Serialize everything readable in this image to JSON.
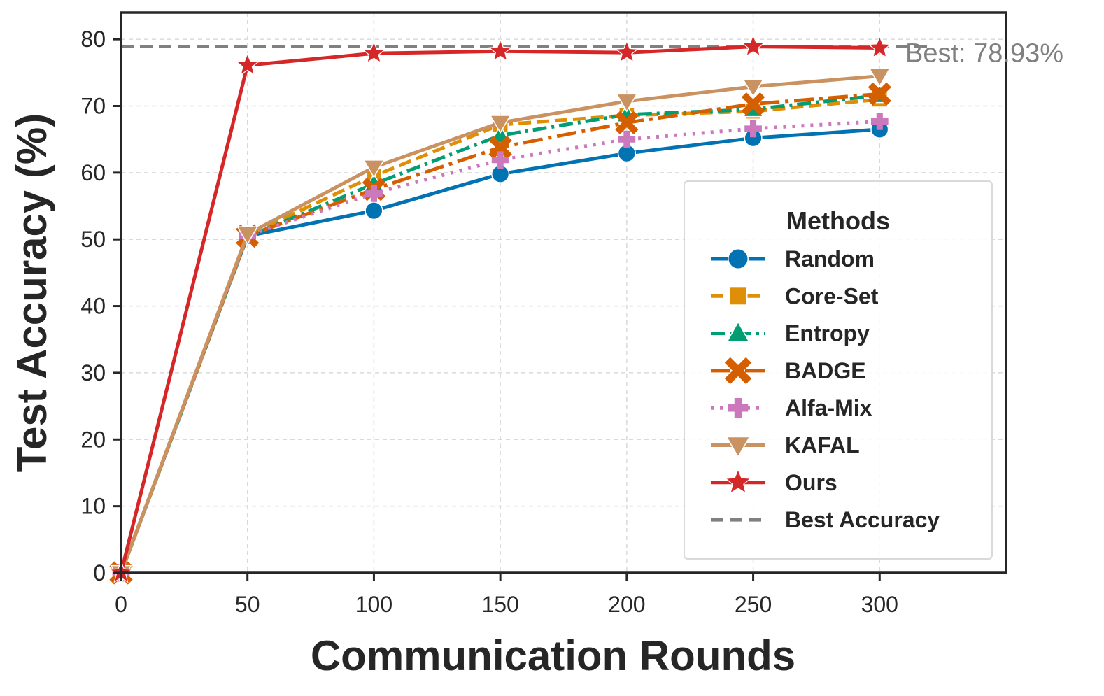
{
  "chart_data": {
    "type": "line",
    "title": "",
    "xlabel": "Communication Rounds",
    "ylabel": "Test Accuracy (%)",
    "x": [
      0,
      50,
      100,
      150,
      200,
      250,
      300
    ],
    "xlim": [
      0,
      350
    ],
    "ylim": [
      0,
      84
    ],
    "xticks": [
      0,
      50,
      100,
      150,
      200,
      250,
      300
    ],
    "yticks": [
      0,
      10,
      20,
      30,
      40,
      50,
      60,
      70,
      80
    ],
    "grid": true,
    "legend_title": "Methods",
    "legend_position": "center-right",
    "series": [
      {
        "name": "Random",
        "values": [
          0,
          50.5,
          54.3,
          59.8,
          62.9,
          65.2,
          66.5
        ],
        "color": "#0173b2",
        "dash": "solid",
        "marker": "circle"
      },
      {
        "name": "Core-Set",
        "values": [
          0,
          50.6,
          59.5,
          67.2,
          68.6,
          69.2,
          71.0
        ],
        "color": "#de8f05",
        "dash": "dashed",
        "marker": "square"
      },
      {
        "name": "Entropy",
        "values": [
          0,
          50.4,
          58.3,
          65.6,
          68.7,
          69.5,
          71.6
        ],
        "color": "#029e73",
        "dash": "dashdot",
        "marker": "triangle-up"
      },
      {
        "name": "BADGE",
        "values": [
          0,
          50.5,
          57.5,
          63.8,
          67.5,
          70.3,
          71.8
        ],
        "color": "#d55e00",
        "dash": "dashdot-long",
        "marker": "x"
      },
      {
        "name": "Alfa-Mix",
        "values": [
          0,
          50.6,
          56.9,
          61.9,
          65.0,
          66.6,
          67.7
        ],
        "color": "#cc78bc",
        "dash": "dotted",
        "marker": "plus"
      },
      {
        "name": "KAFAL",
        "values": [
          0,
          50.8,
          60.8,
          67.5,
          70.7,
          72.9,
          74.5
        ],
        "color": "#ca9161",
        "dash": "solid",
        "marker": "triangle-down"
      },
      {
        "name": "Ours",
        "values": [
          0,
          76.1,
          77.9,
          78.2,
          78.0,
          78.9,
          78.7
        ],
        "color": "#d62728",
        "dash": "solid",
        "marker": "star"
      }
    ],
    "reference_line": {
      "name": "Best Accuracy",
      "value": 78.93,
      "color": "#808080",
      "dash": "dashed"
    },
    "annotation": "Best: 78.93%"
  }
}
